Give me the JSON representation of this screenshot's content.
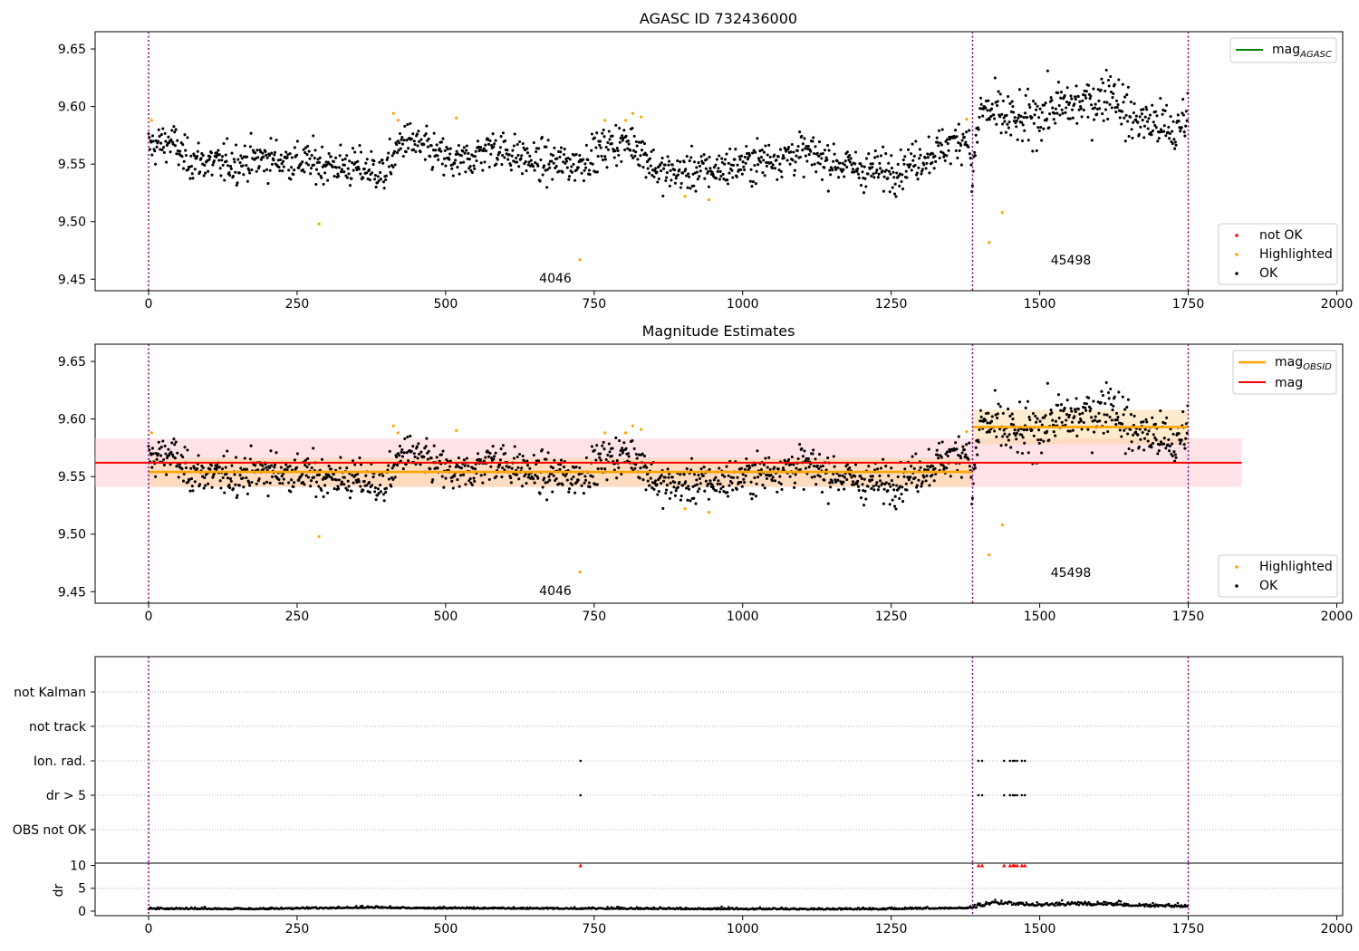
{
  "colors": {
    "ok": "#000000",
    "highlighted": "#ffa500",
    "not_ok": "#ff0000",
    "mag_agasc": "#008000",
    "mag_obsid": "#ffa500",
    "mag": "#ff0000",
    "boundary": "#800080",
    "band_mag": "#ffc0cb",
    "band_obsid": "#ffcf85"
  },
  "chart_data": [
    {
      "type": "scatter",
      "title": "AGASC ID 732436000",
      "xlim": [
        -90,
        2010
      ],
      "ylim": [
        9.44,
        9.665
      ],
      "xticks": [
        0,
        250,
        500,
        750,
        1000,
        1250,
        1500,
        1750,
        2000
      ],
      "yticks": [
        9.45,
        9.5,
        9.55,
        9.6,
        9.65
      ],
      "obsid_boundaries": [
        0,
        1387,
        1750
      ],
      "obsid_labels": [
        {
          "text": "4046",
          "x": 693,
          "y": 9.446
        },
        {
          "text": "45498",
          "x": 1565,
          "y": 9.462
        }
      ],
      "legends": {
        "upper_right": [
          "mag_AGASC"
        ],
        "lower_right": [
          "not OK",
          "Highlighted",
          "OK"
        ]
      },
      "highlighted_points": [
        {
          "x": 5,
          "y": 9.588
        },
        {
          "x": 287,
          "y": 9.498
        },
        {
          "x": 412,
          "y": 9.594
        },
        {
          "x": 420,
          "y": 9.588
        },
        {
          "x": 518,
          "y": 9.59
        },
        {
          "x": 726,
          "y": 9.467
        },
        {
          "x": 768,
          "y": 9.588
        },
        {
          "x": 803,
          "y": 9.588
        },
        {
          "x": 815,
          "y": 9.594
        },
        {
          "x": 829,
          "y": 9.591
        },
        {
          "x": 903,
          "y": 9.522
        },
        {
          "x": 943,
          "y": 9.519
        },
        {
          "x": 1377,
          "y": 9.589
        },
        {
          "x": 1415,
          "y": 9.482
        },
        {
          "x": 1437,
          "y": 9.508
        }
      ],
      "ok_series_profile": {
        "x": [
          0,
          40,
          60,
          120,
          200,
          300,
          380,
          395,
          430,
          470,
          520,
          580,
          650,
          720,
          780,
          820,
          860,
          950,
          1000,
          1100,
          1200,
          1260,
          1320,
          1380,
          1383,
          1386,
          1400,
          1470,
          1520,
          1600,
          1620,
          1650,
          1700,
          1730,
          1750
        ],
        "y": [
          9.565,
          9.57,
          9.555,
          9.55,
          9.555,
          9.55,
          9.545,
          9.54,
          9.572,
          9.562,
          9.55,
          9.565,
          9.552,
          9.55,
          9.568,
          9.568,
          9.542,
          9.545,
          9.55,
          9.56,
          9.545,
          9.545,
          9.56,
          9.575,
          9.555,
          9.533,
          9.598,
          9.585,
          9.598,
          9.605,
          9.617,
          9.59,
          9.585,
          9.575,
          9.6
        ]
      }
    },
    {
      "type": "scatter",
      "title": "Magnitude Estimates",
      "xlim": [
        -90,
        2010
      ],
      "ylim": [
        9.44,
        9.665
      ],
      "xticks": [
        0,
        250,
        500,
        750,
        1000,
        1250,
        1500,
        1750,
        2000
      ],
      "yticks": [
        9.45,
        9.5,
        9.55,
        9.6,
        9.65
      ],
      "obsid_boundaries": [
        0,
        1387,
        1750
      ],
      "obsid_labels": [
        {
          "text": "4046",
          "x": 693,
          "y": 9.446
        },
        {
          "text": "45498",
          "x": 1565,
          "y": 9.462
        }
      ],
      "legends": {
        "upper_right": [
          "mag_OBSID",
          "mag"
        ],
        "lower_right": [
          "Highlighted",
          "OK"
        ]
      },
      "lines": [
        {
          "name": "mag",
          "y": 9.562,
          "x": [
            -90,
            1840
          ],
          "band": [
            9.541,
            9.583
          ]
        },
        {
          "name": "mag_OBSID",
          "y": 9.554,
          "x": [
            0,
            1387
          ],
          "band": [
            9.541,
            9.566
          ]
        },
        {
          "name": "mag_OBSID",
          "y": 9.593,
          "x": [
            1387,
            1750
          ],
          "band": [
            9.578,
            9.608
          ]
        }
      ]
    },
    {
      "type": "scatter",
      "title": "",
      "xlim": [
        -90,
        2010
      ],
      "categories": [
        "not Kalman",
        "not track",
        "Ion. rad.",
        "dr > 5",
        "OBS not OK"
      ],
      "obsid_boundaries": [
        0,
        1387,
        1750
      ],
      "flags": {
        "Ion. rad.": [
          727,
          1397,
          1403,
          1440,
          1450,
          1455,
          1458,
          1462,
          1470,
          1475
        ],
        "dr > 5": [
          727,
          1397,
          1403,
          1440,
          1450,
          1455,
          1458,
          1462,
          1470,
          1475
        ]
      }
    },
    {
      "type": "scatter",
      "title": "",
      "ylabel": "dr",
      "xlim": [
        -90,
        2010
      ],
      "ylim": [
        -1,
        10.5
      ],
      "xticks": [
        0,
        250,
        500,
        750,
        1000,
        1250,
        1500,
        1750,
        2000
      ],
      "yticks": [
        0,
        5,
        10
      ],
      "obsid_boundaries": [
        0,
        1387,
        1750
      ],
      "dr_baseline": {
        "x": [
          0,
          200,
          380,
          400,
          600,
          900,
          1200,
          1380,
          1400,
          1420,
          1500,
          1560,
          1620,
          1680,
          1750
        ],
        "y": [
          0.4,
          0.4,
          0.7,
          0.6,
          0.5,
          0.4,
          0.3,
          0.6,
          0.9,
          1.6,
          1.1,
          1.3,
          1.2,
          1.0,
          0.8
        ]
      },
      "dr_high": [
        727,
        1397,
        1403,
        1440,
        1450,
        1455,
        1458,
        1462,
        1470,
        1475
      ],
      "dr_high_value": 10
    }
  ],
  "legend_text": {
    "mag_prefix": "mag",
    "agasc_sub": "AGASC",
    "obsid_sub": "OBSID",
    "mag": "mag",
    "not_ok": "not OK",
    "highlighted": "Highlighted",
    "ok": "OK"
  }
}
